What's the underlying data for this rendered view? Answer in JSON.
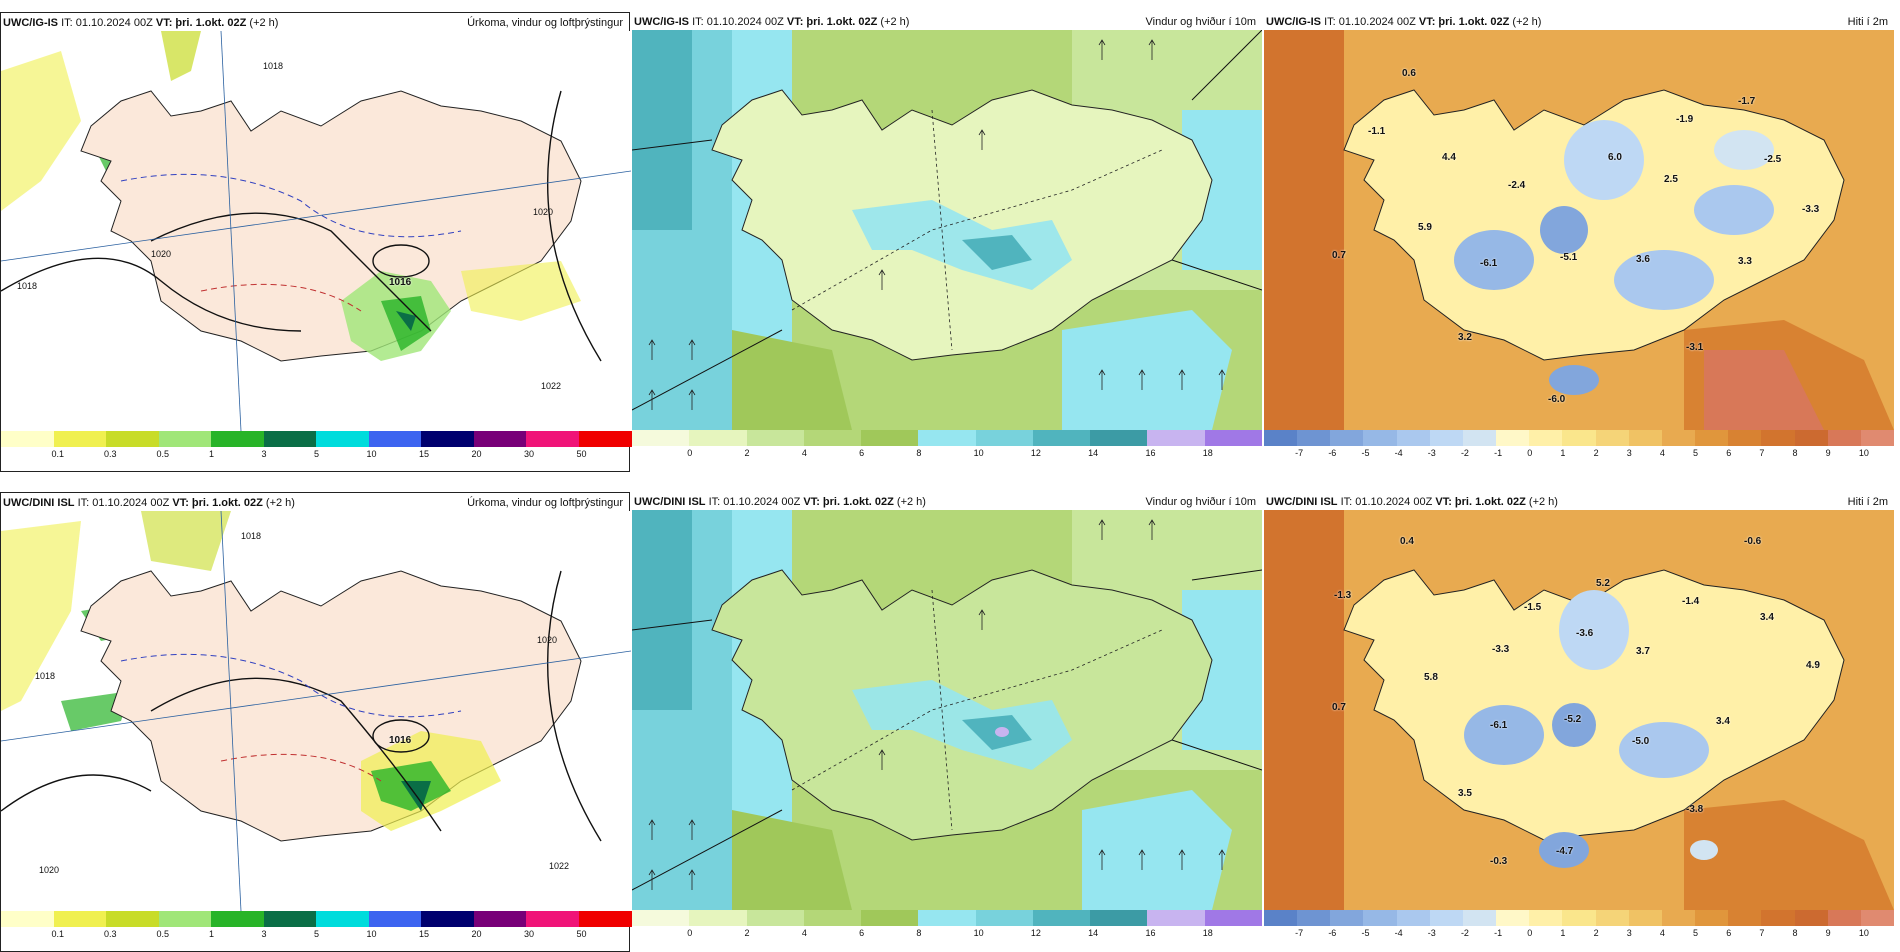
{
  "rows": [
    {
      "model": "UWC/IG-IS",
      "it": "IT: 01.10.2024 00Z",
      "vt_label": "VT:",
      "vt": "þri. 1.okt. 02Z",
      "lead": "(+2 h)",
      "titles": [
        "Úrkoma, vindur og loftþrýstingur",
        "Vindur og hviður í 10m",
        "Hiti í 2m"
      ],
      "pressure_low": "1016",
      "isobars": [
        "1018",
        "1018",
        "1020",
        "1020",
        "1022"
      ],
      "temps": [
        {
          "v": "0.6"
        },
        {
          "v": "-1.1"
        },
        {
          "v": "4.4"
        },
        {
          "v": "-2.4"
        },
        {
          "v": "6.0"
        },
        {
          "v": "-1.9"
        },
        {
          "v": "-1.7"
        },
        {
          "v": "-2.5"
        },
        {
          "v": "2.5"
        },
        {
          "v": "-3.3"
        },
        {
          "v": "5.9"
        },
        {
          "v": "0.7"
        },
        {
          "v": "-6.1"
        },
        {
          "v": "-5.1"
        },
        {
          "v": "3.6"
        },
        {
          "v": "3.3"
        },
        {
          "v": "3.2"
        },
        {
          "v": "-3.1"
        },
        {
          "v": "-6.0"
        }
      ]
    },
    {
      "model": "UWC/DINI ISL",
      "it": "IT: 01.10.2024 00Z",
      "vt_label": "VT:",
      "vt": "þri. 1.okt. 02Z",
      "lead": "(+2 h)",
      "titles": [
        "Úrkoma, vindur og loftþrýstingur",
        "Vindur og hviður í 10m",
        "Hiti í 2m"
      ],
      "pressure_low": "1016",
      "isobars": [
        "1018",
        "1018",
        "1020",
        "1020",
        "1022"
      ],
      "temps": [
        {
          "v": "0.4"
        },
        {
          "v": "-0.6"
        },
        {
          "v": "-1.3"
        },
        {
          "v": "5.2"
        },
        {
          "v": "-1.5"
        },
        {
          "v": "-1.4"
        },
        {
          "v": "-3.6"
        },
        {
          "v": "3.4"
        },
        {
          "v": "-3.3"
        },
        {
          "v": "3.7"
        },
        {
          "v": "4.9"
        },
        {
          "v": "5.8"
        },
        {
          "v": "0.7"
        },
        {
          "v": "-5.2"
        },
        {
          "v": "-6.1"
        },
        {
          "v": "-5.0"
        },
        {
          "v": "3.4"
        },
        {
          "v": "3.5"
        },
        {
          "v": "-3.8"
        },
        {
          "v": "-4.7"
        },
        {
          "v": "-0.3"
        }
      ]
    }
  ],
  "colorbars": {
    "precip": {
      "ticks": [
        "0.1",
        "0.3",
        "0.5",
        "1",
        "3",
        "5",
        "10",
        "15",
        "20",
        "30",
        "50"
      ],
      "colors": [
        "#ffffc8",
        "#f0f050",
        "#c8dc28",
        "#a0e678",
        "#28b428",
        "#0a6e46",
        "#00dcdc",
        "#3c64f0",
        "#00006e",
        "#780078",
        "#f01478",
        "#f00000"
      ]
    },
    "wind": {
      "ticks": [
        "0",
        "2",
        "4",
        "6",
        "8",
        "10",
        "12",
        "14",
        "16",
        "18"
      ],
      "colors": [
        "#f5fadc",
        "#e6f5be",
        "#c8e69b",
        "#b4d778",
        "#a0c85a",
        "#96e6f0",
        "#78d2dc",
        "#50b4be",
        "#3c9ba5",
        "#c8b4f0",
        "#a078e6"
      ]
    },
    "temp": {
      "ticks": [
        "-7",
        "-6",
        "-5",
        "-4",
        "-3",
        "-2",
        "-1",
        "0",
        "1",
        "2",
        "3",
        "4",
        "5",
        "6",
        "7",
        "8",
        "9",
        "10"
      ],
      "colors": [
        "#5a82c8",
        "#6e94d2",
        "#82a6dc",
        "#96b8e6",
        "#aac8ee",
        "#bed8f4",
        "#d2e4f2",
        "#fff8c8",
        "#fff0a8",
        "#fae68c",
        "#f5d478",
        "#f0c264",
        "#e8aa50",
        "#e0963c",
        "#d88232",
        "#d2742e",
        "#cc6a30",
        "#d87858",
        "#e08a70"
      ]
    }
  }
}
